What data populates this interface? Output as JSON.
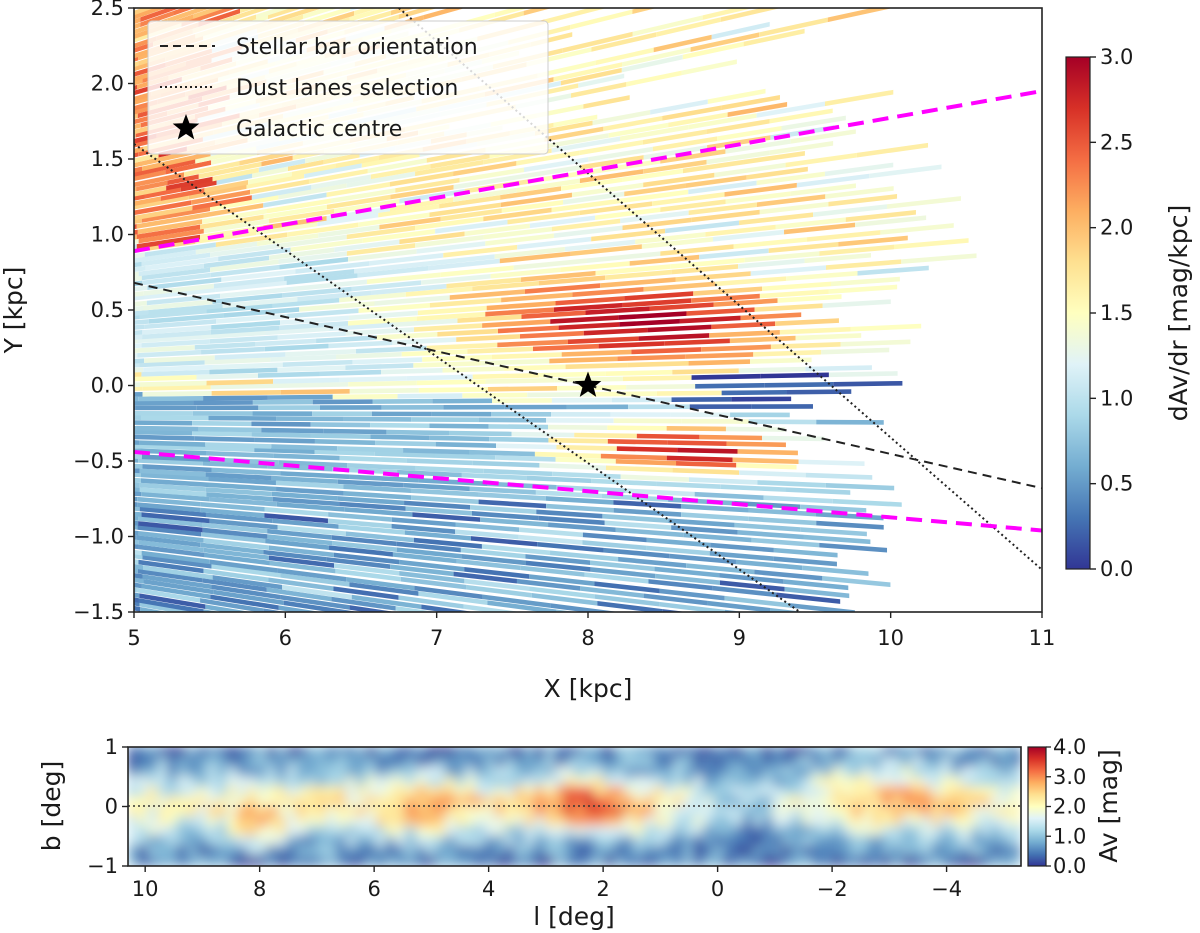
{
  "chart_data": [
    {
      "type": "heatmap",
      "subtype": "line-of-sight extinction gradient map with overlays",
      "xlabel": "X [kpc]",
      "ylabel": "Y [kpc]",
      "xlim": [
        5,
        11
      ],
      "ylim": [
        -1.5,
        2.5
      ],
      "xticks": [
        5,
        6,
        7,
        8,
        9,
        10,
        11
      ],
      "yticks": [
        -1.5,
        -1.0,
        -0.5,
        0.0,
        0.5,
        1.0,
        1.5,
        2.0,
        2.5
      ],
      "colorbar": {
        "label": "dAv/dr [mag/kpc]",
        "range": [
          0.0,
          3.0
        ],
        "ticks": [
          0.0,
          0.5,
          1.0,
          1.5,
          2.0,
          2.5,
          3.0
        ],
        "colormap": "RdYlBu_r"
      },
      "legend": {
        "location": "upper-left",
        "entries": [
          {
            "label": "Stellar bar orientation",
            "style": "dashed",
            "color": "#000000"
          },
          {
            "label": "Dust lanes selection",
            "style": "dotted",
            "color": "#000000"
          },
          {
            "label": "Galactic centre",
            "style": "star-marker",
            "color": "#000000"
          }
        ]
      },
      "lines": [
        {
          "name": "Stellar bar orientation",
          "style": "dashed",
          "color": "#222222",
          "points": [
            [
              5,
              0.68
            ],
            [
              11,
              -0.68
            ]
          ]
        },
        {
          "name": "Dust lanes selection upper",
          "style": "dotted",
          "color": "#222222",
          "points": [
            [
              6.75,
              2.5
            ],
            [
              11,
              -1.22
            ]
          ]
        },
        {
          "name": "Dust lanes selection lower",
          "style": "dotted",
          "color": "#222222",
          "points": [
            [
              5,
              1.6
            ],
            [
              9.4,
              -1.5
            ]
          ]
        },
        {
          "name": "Boundary upper",
          "style": "dashed",
          "color": "#ff00ff",
          "points": [
            [
              5,
              0.89
            ],
            [
              11,
              1.95
            ]
          ]
        },
        {
          "name": "Boundary lower",
          "style": "dashed",
          "color": "#ff00ff",
          "points": [
            [
              5,
              -0.44
            ],
            [
              11,
              -0.96
            ]
          ]
        }
      ],
      "markers": [
        {
          "name": "Galactic centre",
          "shape": "star",
          "x": 8.0,
          "y": 0.0,
          "color": "#000000"
        }
      ]
    },
    {
      "type": "heatmap",
      "subtype": "integrated extinction map",
      "xlabel": "l [deg]",
      "ylabel": "b [deg]",
      "xlim": [
        10.3,
        -5.3
      ],
      "ylim": [
        -1,
        1
      ],
      "xticks": [
        10,
        8,
        6,
        4,
        2,
        0,
        -2,
        -4
      ],
      "yticks": [
        -1,
        0,
        1
      ],
      "reference_line": {
        "y": 0,
        "style": "dotted"
      },
      "colorbar": {
        "label": "Av [mag]",
        "range": [
          0.0,
          4.0
        ],
        "ticks": [
          0.0,
          1.0,
          2.0,
          3.0,
          4.0
        ],
        "colormap": "RdYlBu_r"
      }
    }
  ]
}
